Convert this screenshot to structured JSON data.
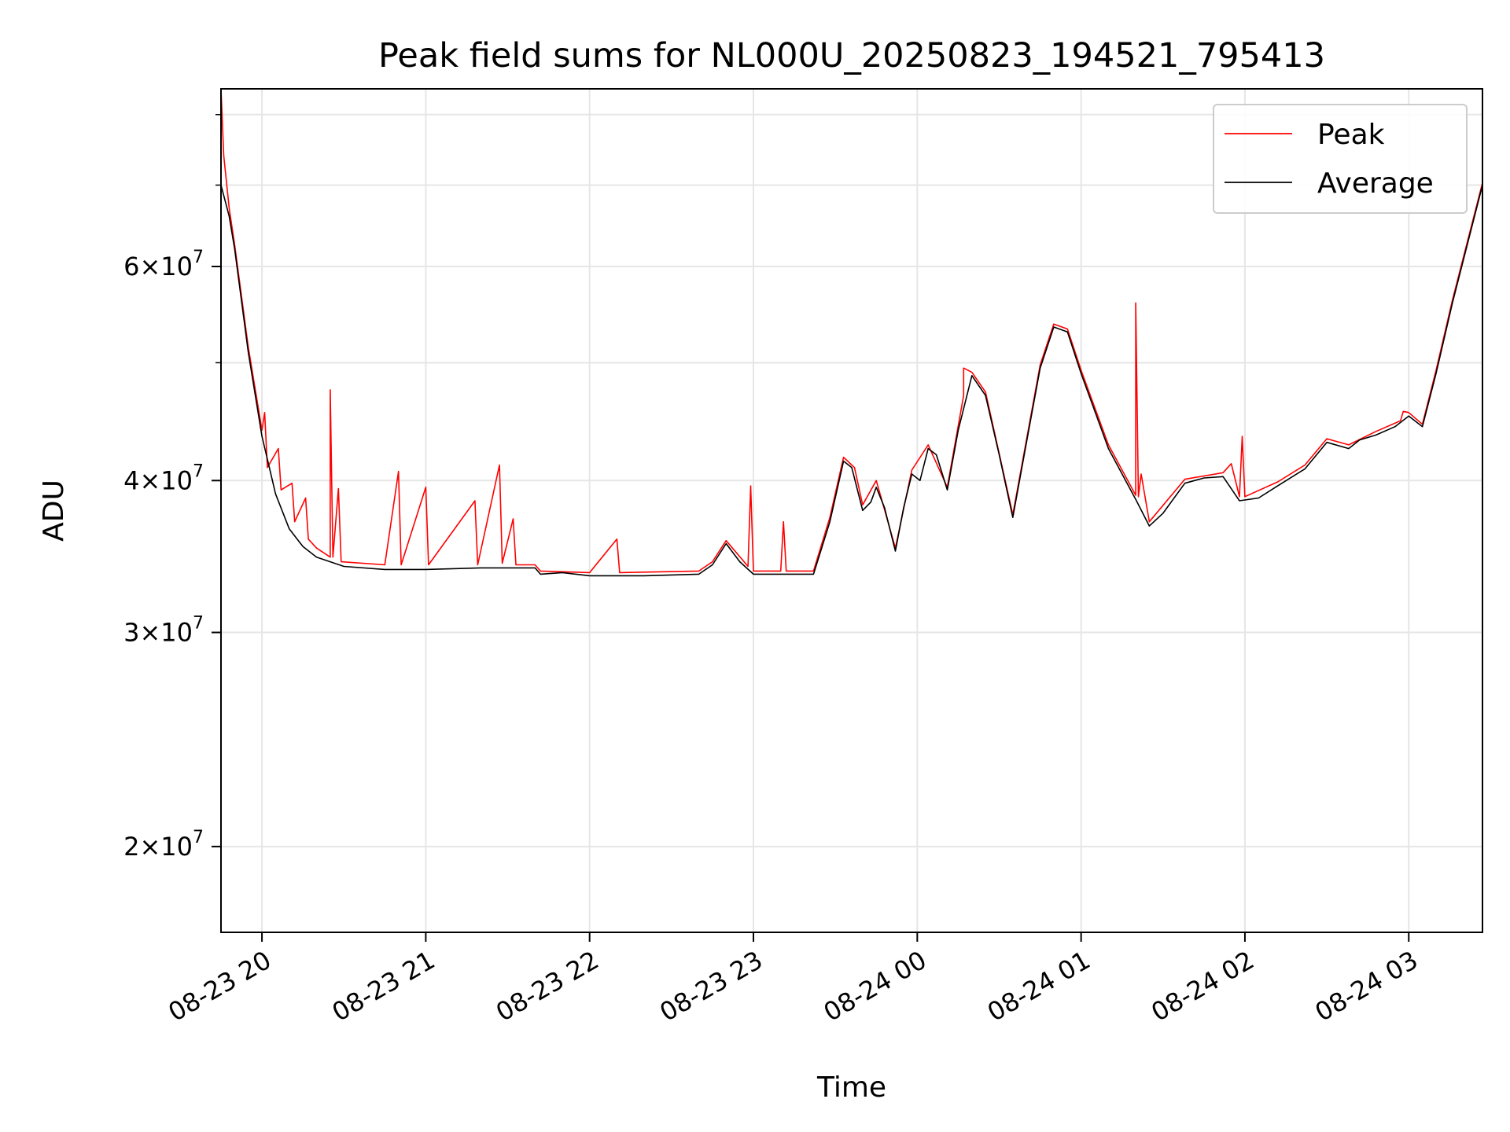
{
  "chart_data": {
    "type": "line",
    "title": "Peak field sums for NL000U_20250823_194521_795413",
    "xlabel": "Time",
    "ylabel": "ADU",
    "yscale": "log",
    "xlim": [
      "2025-08-23 19:45",
      "2025-08-24 03:27"
    ],
    "ylim": [
      17000000,
      84000000
    ],
    "grid": true,
    "legend_position": "top-right",
    "x_ticks": [
      {
        "value": "2025-08-23 20:00",
        "label": "08-23 20"
      },
      {
        "value": "2025-08-23 21:00",
        "label": "08-23 21"
      },
      {
        "value": "2025-08-23 22:00",
        "label": "08-23 22"
      },
      {
        "value": "2025-08-23 23:00",
        "label": "08-23 23"
      },
      {
        "value": "2025-08-24 00:00",
        "label": "08-24 00"
      },
      {
        "value": "2025-08-24 01:00",
        "label": "08-24 01"
      },
      {
        "value": "2025-08-24 02:00",
        "label": "08-24 02"
      },
      {
        "value": "2025-08-24 03:00",
        "label": "08-24 03"
      }
    ],
    "y_ticks": [
      {
        "value": 20000000,
        "mantissa": "2",
        "base": "10",
        "exponent": "7"
      },
      {
        "value": 30000000,
        "mantissa": "3",
        "base": "10",
        "exponent": "7"
      },
      {
        "value": 40000000,
        "mantissa": "4",
        "base": "10",
        "exponent": "7"
      },
      {
        "value": 60000000,
        "mantissa": "6",
        "base": "10",
        "exponent": "7"
      }
    ],
    "y_minor_ticks": [
      50000000,
      70000000,
      80000000
    ],
    "series": [
      {
        "name": "Average",
        "color": "#000000",
        "points": [
          [
            "2025-08-23 19:45",
            70000000
          ],
          [
            "2025-08-23 19:48",
            66000000
          ],
          [
            "2025-08-23 19:50",
            62000000
          ],
          [
            "2025-08-23 19:55",
            51000000
          ],
          [
            "2025-08-23 20:00",
            43500000
          ],
          [
            "2025-08-23 20:05",
            39000000
          ],
          [
            "2025-08-23 20:10",
            36500000
          ],
          [
            "2025-08-23 20:15",
            35300000
          ],
          [
            "2025-08-23 20:20",
            34600000
          ],
          [
            "2025-08-23 20:30",
            34000000
          ],
          [
            "2025-08-23 20:45",
            33800000
          ],
          [
            "2025-08-23 21:00",
            33800000
          ],
          [
            "2025-08-23 21:20",
            33900000
          ],
          [
            "2025-08-23 21:40",
            33900000
          ],
          [
            "2025-08-23 21:42",
            33500000
          ],
          [
            "2025-08-23 21:50",
            33600000
          ],
          [
            "2025-08-23 22:00",
            33400000
          ],
          [
            "2025-08-23 22:20",
            33400000
          ],
          [
            "2025-08-23 22:40",
            33500000
          ],
          [
            "2025-08-23 22:45",
            34100000
          ],
          [
            "2025-08-23 22:50",
            35500000
          ],
          [
            "2025-08-23 22:55",
            34300000
          ],
          [
            "2025-08-23 23:00",
            33500000
          ],
          [
            "2025-08-23 23:10",
            33500000
          ],
          [
            "2025-08-23 23:22",
            33500000
          ],
          [
            "2025-08-23 23:28",
            37000000
          ],
          [
            "2025-08-23 23:33",
            41500000
          ],
          [
            "2025-08-23 23:36",
            41000000
          ],
          [
            "2025-08-23 23:40",
            37800000
          ],
          [
            "2025-08-23 23:43",
            38400000
          ],
          [
            "2025-08-23 23:45",
            39500000
          ],
          [
            "2025-08-23 23:48",
            38000000
          ],
          [
            "2025-08-23 23:52",
            35000000
          ],
          [
            "2025-08-23 23:55",
            38000000
          ],
          [
            "2025-08-23 23:58",
            40500000
          ],
          [
            "2025-08-24 00:01",
            40000000
          ],
          [
            "2025-08-24 00:04",
            42500000
          ],
          [
            "2025-08-24 00:07",
            42000000
          ],
          [
            "2025-08-24 00:11",
            39300000
          ],
          [
            "2025-08-24 00:15",
            44000000
          ],
          [
            "2025-08-24 00:20",
            48800000
          ],
          [
            "2025-08-24 00:25",
            47000000
          ],
          [
            "2025-08-24 00:30",
            42000000
          ],
          [
            "2025-08-24 00:35",
            37300000
          ],
          [
            "2025-08-24 00:40",
            43000000
          ],
          [
            "2025-08-24 00:45",
            49500000
          ],
          [
            "2025-08-24 00:50",
            53500000
          ],
          [
            "2025-08-24 00:55",
            53000000
          ],
          [
            "2025-08-24 01:00",
            49000000
          ],
          [
            "2025-08-24 01:10",
            42500000
          ],
          [
            "2025-08-24 01:20",
            38600000
          ],
          [
            "2025-08-24 01:25",
            36700000
          ],
          [
            "2025-08-24 01:30",
            37600000
          ],
          [
            "2025-08-24 01:38",
            39800000
          ],
          [
            "2025-08-24 01:45",
            40200000
          ],
          [
            "2025-08-24 01:52",
            40300000
          ],
          [
            "2025-08-24 01:58",
            38500000
          ],
          [
            "2025-08-24 02:05",
            38700000
          ],
          [
            "2025-08-24 02:12",
            39600000
          ],
          [
            "2025-08-24 02:22",
            40900000
          ],
          [
            "2025-08-24 02:30",
            43000000
          ],
          [
            "2025-08-24 02:38",
            42500000
          ],
          [
            "2025-08-24 02:42",
            43200000
          ],
          [
            "2025-08-24 02:48",
            43600000
          ],
          [
            "2025-08-24 02:55",
            44300000
          ],
          [
            "2025-08-24 03:00",
            45200000
          ],
          [
            "2025-08-24 03:05",
            44300000
          ],
          [
            "2025-08-24 03:10",
            49000000
          ],
          [
            "2025-08-24 03:16",
            56000000
          ],
          [
            "2025-08-24 03:21",
            62000000
          ],
          [
            "2025-08-24 03:27",
            70000000
          ]
        ]
      },
      {
        "name": "Peak",
        "color": "#ff0000",
        "points": [
          [
            "2025-08-23 19:45",
            84000000
          ],
          [
            "2025-08-23 19:46",
            74000000
          ],
          [
            "2025-08-23 19:48",
            67000000
          ],
          [
            "2025-08-23 19:50",
            62500000
          ],
          [
            "2025-08-23 19:55",
            51500000
          ],
          [
            "2025-08-23 20:00",
            44000000
          ],
          [
            "2025-08-23 20:01",
            45500000
          ],
          [
            "2025-08-23 20:02",
            41000000
          ],
          [
            "2025-08-23 20:06",
            42500000
          ],
          [
            "2025-08-23 20:07",
            39300000
          ],
          [
            "2025-08-23 20:11",
            39800000
          ],
          [
            "2025-08-23 20:12",
            37000000
          ],
          [
            "2025-08-23 20:16",
            38700000
          ],
          [
            "2025-08-23 20:17",
            35800000
          ],
          [
            "2025-08-23 20:20",
            35200000
          ],
          [
            "2025-08-23 20:25",
            34600000
          ],
          [
            "2025-08-23 20:25",
            47500000
          ],
          [
            "2025-08-23 20:26",
            34600000
          ],
          [
            "2025-08-23 20:28",
            39400000
          ],
          [
            "2025-08-23 20:29",
            34300000
          ],
          [
            "2025-08-23 20:45",
            34100000
          ],
          [
            "2025-08-23 20:50",
            40700000
          ],
          [
            "2025-08-23 20:51",
            34100000
          ],
          [
            "2025-08-23 21:00",
            39500000
          ],
          [
            "2025-08-23 21:01",
            34100000
          ],
          [
            "2025-08-23 21:18",
            38500000
          ],
          [
            "2025-08-23 21:19",
            34100000
          ],
          [
            "2025-08-23 21:27",
            41200000
          ],
          [
            "2025-08-23 21:28",
            34200000
          ],
          [
            "2025-08-23 21:32",
            37200000
          ],
          [
            "2025-08-23 21:33",
            34100000
          ],
          [
            "2025-08-23 21:40",
            34100000
          ],
          [
            "2025-08-23 21:42",
            33700000
          ],
          [
            "2025-08-23 22:00",
            33600000
          ],
          [
            "2025-08-23 22:10",
            35800000
          ],
          [
            "2025-08-23 22:11",
            33600000
          ],
          [
            "2025-08-23 22:40",
            33700000
          ],
          [
            "2025-08-23 22:45",
            34300000
          ],
          [
            "2025-08-23 22:50",
            35700000
          ],
          [
            "2025-08-23 22:58",
            34000000
          ],
          [
            "2025-08-23 22:59",
            39600000
          ],
          [
            "2025-08-23 23:00",
            33700000
          ],
          [
            "2025-08-23 23:10",
            33700000
          ],
          [
            "2025-08-23 23:11",
            37000000
          ],
          [
            "2025-08-23 23:12",
            33700000
          ],
          [
            "2025-08-23 23:22",
            33700000
          ],
          [
            "2025-08-23 23:28",
            37300000
          ],
          [
            "2025-08-23 23:33",
            41800000
          ],
          [
            "2025-08-23 23:36",
            41200000
          ],
          [
            "2025-08-23 23:37",
            41000000
          ],
          [
            "2025-08-23 23:40",
            38200000
          ],
          [
            "2025-08-23 23:45",
            40000000
          ],
          [
            "2025-08-23 23:52",
            35200000
          ],
          [
            "2025-08-23 23:58",
            40800000
          ],
          [
            "2025-08-24 00:04",
            42800000
          ],
          [
            "2025-08-24 00:11",
            39500000
          ],
          [
            "2025-08-24 00:17",
            47000000
          ],
          [
            "2025-08-24 00:17",
            49500000
          ],
          [
            "2025-08-24 00:20",
            49100000
          ],
          [
            "2025-08-24 00:25",
            47300000
          ],
          [
            "2025-08-24 00:35",
            37500000
          ],
          [
            "2025-08-24 00:45",
            49800000
          ],
          [
            "2025-08-24 00:50",
            53800000
          ],
          [
            "2025-08-24 00:55",
            53300000
          ],
          [
            "2025-08-24 01:00",
            49300000
          ],
          [
            "2025-08-24 01:10",
            42800000
          ],
          [
            "2025-08-24 01:20",
            38900000
          ],
          [
            "2025-08-24 01:20",
            56000000
          ],
          [
            "2025-08-24 01:21",
            38800000
          ],
          [
            "2025-08-24 01:22",
            40500000
          ],
          [
            "2025-08-24 01:25",
            37000000
          ],
          [
            "2025-08-24 01:38",
            40100000
          ],
          [
            "2025-08-24 01:52",
            40600000
          ],
          [
            "2025-08-24 01:55",
            41300000
          ],
          [
            "2025-08-24 01:58",
            38800000
          ],
          [
            "2025-08-24 01:59",
            43500000
          ],
          [
            "2025-08-24 02:00",
            38800000
          ],
          [
            "2025-08-24 02:12",
            39900000
          ],
          [
            "2025-08-24 02:22",
            41200000
          ],
          [
            "2025-08-24 02:30",
            43300000
          ],
          [
            "2025-08-24 02:38",
            42800000
          ],
          [
            "2025-08-24 02:48",
            43900000
          ],
          [
            "2025-08-24 02:57",
            44800000
          ],
          [
            "2025-08-24 02:58",
            45600000
          ],
          [
            "2025-08-24 03:00",
            45500000
          ],
          [
            "2025-08-24 03:05",
            44500000
          ],
          [
            "2025-08-24 03:10",
            49300000
          ],
          [
            "2025-08-24 03:16",
            56300000
          ],
          [
            "2025-08-24 03:21",
            62300000
          ],
          [
            "2025-08-24 03:27",
            70300000
          ]
        ]
      }
    ]
  }
}
